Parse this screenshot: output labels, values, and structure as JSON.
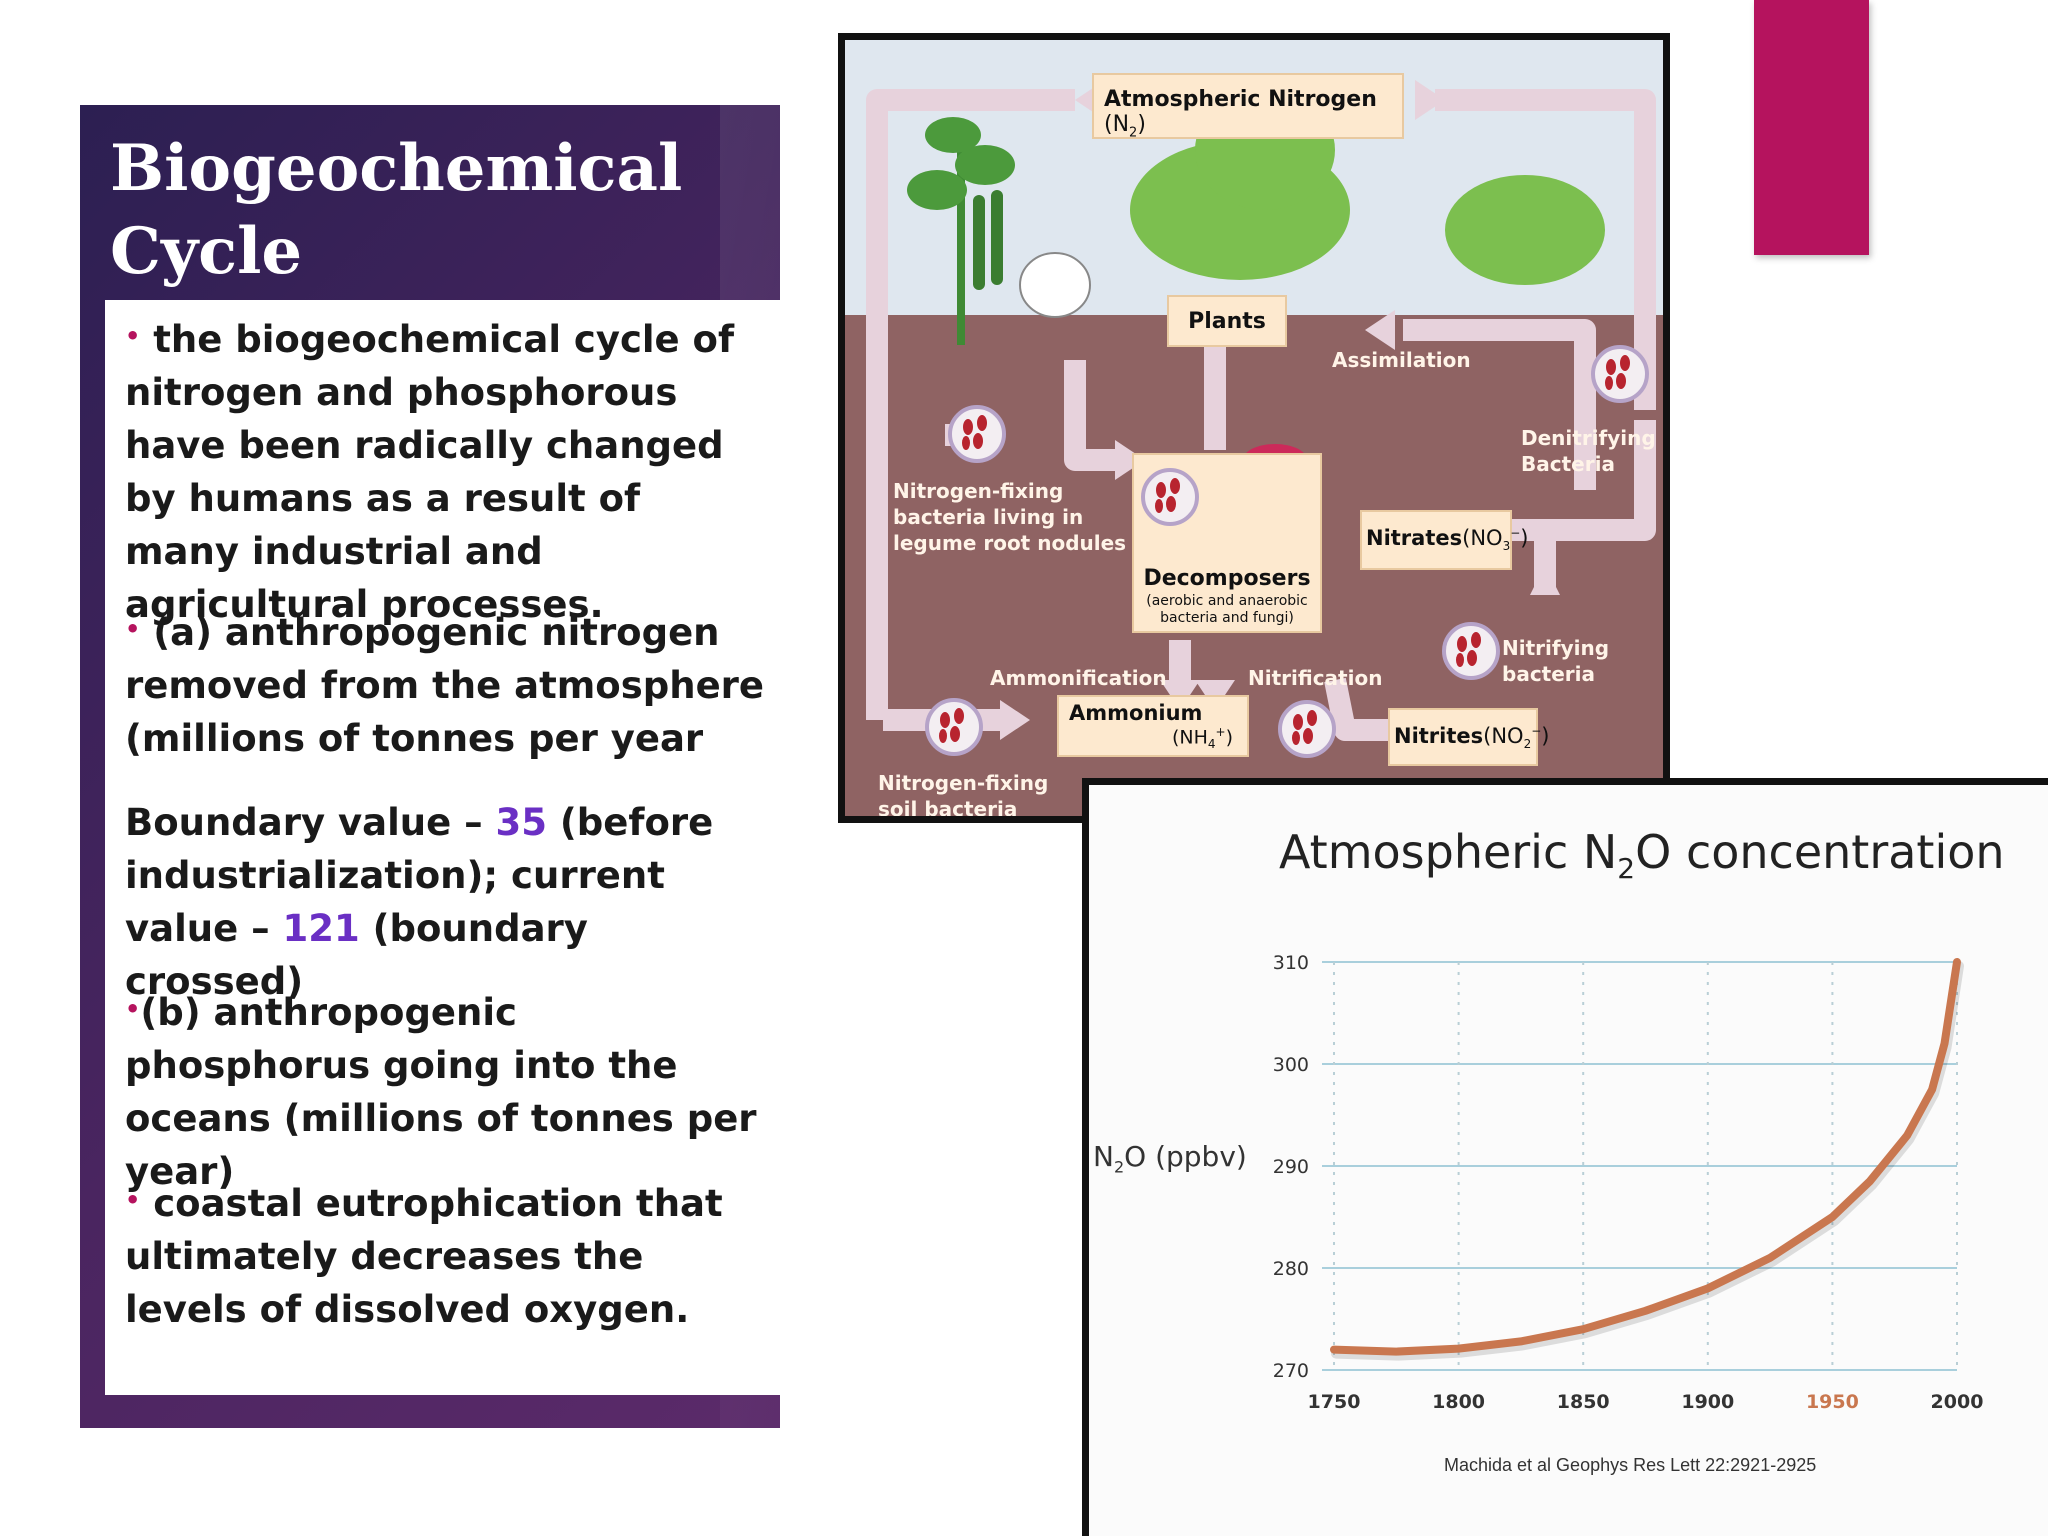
{
  "slide": {
    "title": "Biogeochemical\nCycle",
    "bullets": [
      "the biogeochemical cycle of nitrogen and phosphorous have been radically changed by humans as a result of many industrial and agricultural processes.",
      "(a) anthropogenic nitrogen removed from the atmosphere (millions of tonnes per year"
    ],
    "boundary": {
      "p1": "Boundary value – ",
      "v1": "35",
      "p2": " (before industrialization); current value – ",
      "v2": "121",
      "p3": " (boundary crossed)"
    },
    "bullets2": [
      "(b) anthropogenic phosphorus going into the oceans (millions of tonnes per year)",
      "coastal eutrophication that ultimately decreases the levels of dissolved oxygen."
    ],
    "colors": {
      "accent": "#b5135e",
      "highlight": "#6a2fc4",
      "panel": "#3a2258"
    }
  },
  "diagram": {
    "atmospheric": "Atmospheric Nitrogen",
    "atmospheric_formula": "(N",
    "atmospheric_sub": "2",
    "atmospheric_close": ")",
    "plants": "Plants",
    "assimilation": "Assimilation",
    "denitrifying": "Denitrifying\nBacteria",
    "nitrogen_fixing_legume": "Nitrogen-fixing\nbacteria living in\nlegume root nodules",
    "decomposers": "Decomposers",
    "decomposers_sub": "(aerobic and anaerobic\nbacteria and fungi)",
    "nitrates": "Nitrates",
    "nitrates_formula": "(NO",
    "nitrates_sub": "3",
    "nitrates_sup": "−",
    "nitrifying": "Nitrifying\nbacteria",
    "ammonification": "Ammonification",
    "nitrification": "Nitrification",
    "ammonium": "Ammonium",
    "ammonium_formula": "(NH",
    "ammonium_sub": "4",
    "ammonium_sup": "+",
    "nitrites": "Nitrites",
    "nitrites_formula": "(NO",
    "nitrites_sub": "2",
    "nitrites_sup": "−",
    "soil_bacteria": "Nitrogen-fixing\nsoil bacteria"
  },
  "chart_data": {
    "type": "line",
    "title_pre": "Atmospheric N",
    "title_sub": "2",
    "title_post": "O concentration",
    "ylabel_pre": "N",
    "ylabel_sub": "2",
    "ylabel_post": "O  (ppbv)",
    "source": "Machida et al Geophys Res Lett 22:2921-2925",
    "xlim": [
      1750,
      2000
    ],
    "ylim": [
      270,
      310
    ],
    "xticks": [
      1750,
      1800,
      1850,
      1900,
      1950,
      2000
    ],
    "yticks": [
      270,
      280,
      290,
      300,
      310
    ],
    "highlight_tick": 1950,
    "grid": true,
    "series": [
      {
        "color": "#c9774f",
        "x": [
          1750,
          1775,
          1800,
          1825,
          1850,
          1875,
          1900,
          1925,
          1950,
          1965,
          1980,
          1990,
          1995,
          2000
        ],
        "y": [
          272.0,
          271.8,
          272.1,
          272.8,
          274.0,
          275.8,
          278.0,
          281.0,
          285.0,
          288.5,
          293.0,
          297.5,
          302.0,
          310.0
        ]
      }
    ]
  }
}
